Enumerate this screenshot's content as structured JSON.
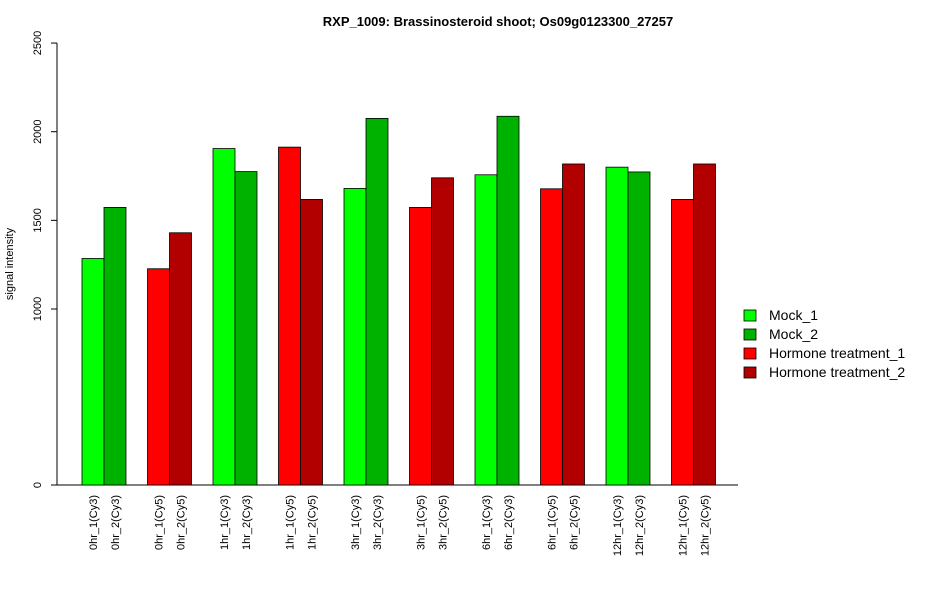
{
  "chart_data": {
    "type": "bar",
    "title": "RXP_1009: Brassinosteroid shoot; Os09g0123300_27257",
    "ylabel": "signal intensity",
    "xlabel": "",
    "ylim": [
      0,
      2500
    ],
    "y_ticks": [
      {
        "value": 0,
        "label": "0"
      },
      {
        "value": 1000,
        "label": "1000"
      },
      {
        "value": 1500,
        "label": "1500"
      },
      {
        "value": 2000,
        "label": "2000"
      },
      {
        "value": 2500,
        "label": "2500"
      }
    ],
    "bars": [
      {
        "label": "0hr_1(Cy3)",
        "value": 1285,
        "series": "Mock_1"
      },
      {
        "label": "0hr_2(Cy3)",
        "value": 1573,
        "series": "Mock_2"
      },
      {
        "label": "0hr_1(Cy5)",
        "value": 1227,
        "series": "Hormone treatment_1"
      },
      {
        "label": "0hr_2(Cy5)",
        "value": 1430,
        "series": "Hormone treatment_2"
      },
      {
        "label": "1hr_1(Cy3)",
        "value": 1905,
        "series": "Mock_1"
      },
      {
        "label": "1hr_2(Cy3)",
        "value": 1775,
        "series": "Mock_2"
      },
      {
        "label": "1hr_1(Cy5)",
        "value": 1913,
        "series": "Hormone treatment_1"
      },
      {
        "label": "1hr_2(Cy5)",
        "value": 1618,
        "series": "Hormone treatment_2"
      },
      {
        "label": "3hr_1(Cy3)",
        "value": 1680,
        "series": "Mock_1"
      },
      {
        "label": "3hr_2(Cy3)",
        "value": 2075,
        "series": "Mock_2"
      },
      {
        "label": "3hr_1(Cy5)",
        "value": 1573,
        "series": "Hormone treatment_1"
      },
      {
        "label": "3hr_2(Cy5)",
        "value": 1740,
        "series": "Hormone treatment_2"
      },
      {
        "label": "6hr_1(Cy3)",
        "value": 1757,
        "series": "Mock_1"
      },
      {
        "label": "6hr_2(Cy3)",
        "value": 2087,
        "series": "Mock_2"
      },
      {
        "label": "6hr_1(Cy5)",
        "value": 1678,
        "series": "Hormone treatment_1"
      },
      {
        "label": "6hr_2(Cy5)",
        "value": 1818,
        "series": "Hormone treatment_2"
      },
      {
        "label": "12hr_1(Cy3)",
        "value": 1800,
        "series": "Mock_1"
      },
      {
        "label": "12hr_2(Cy3)",
        "value": 1773,
        "series": "Mock_2"
      },
      {
        "label": "12hr_1(Cy5)",
        "value": 1618,
        "series": "Hormone treatment_1"
      },
      {
        "label": "12hr_2(Cy5)",
        "value": 1818,
        "series": "Hormone treatment_2"
      }
    ],
    "legend": {
      "position": "right",
      "entries": [
        {
          "name": "Mock_1",
          "color": "#00FF00"
        },
        {
          "name": "Mock_2",
          "color": "#00B200"
        },
        {
          "name": "Hormone treatment_1",
          "color": "#FF0000"
        },
        {
          "name": "Hormone treatment_2",
          "color": "#B20000"
        }
      ]
    },
    "grid": false
  }
}
